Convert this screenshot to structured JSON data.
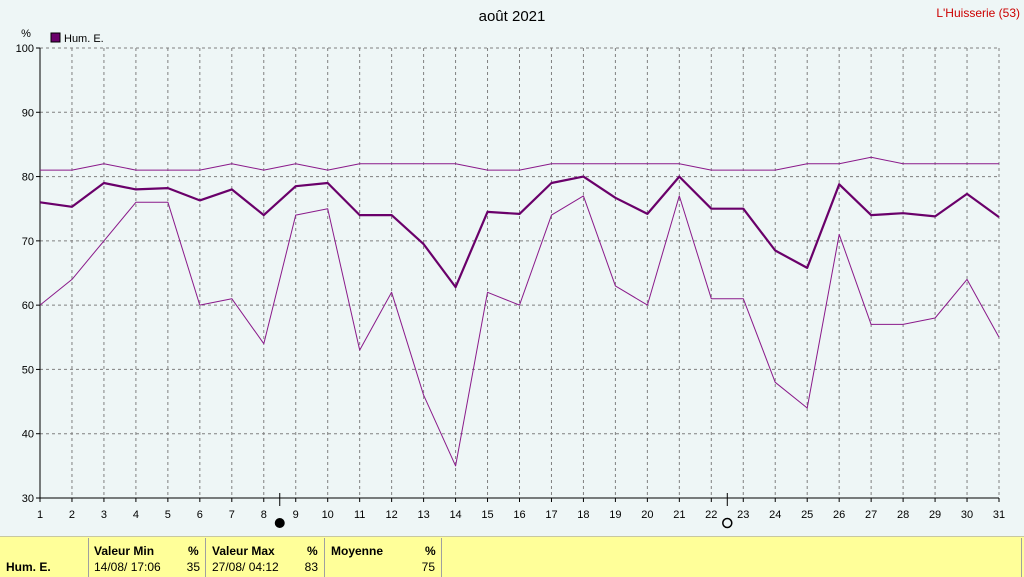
{
  "title": "août 2021",
  "station": "L'Huisserie (53)",
  "legend": {
    "label": "Hum. E."
  },
  "colors": {
    "series": "#6a006a",
    "minmax": "#8a1a8a",
    "grid": "#808080",
    "stats_bg": "#ffff99"
  },
  "markers": {
    "new_moon_day": 9,
    "full_moon_day": 23
  },
  "chart_data": {
    "type": "line",
    "ylabel": "%",
    "ylim": [
      30,
      100
    ],
    "yticks": [
      30,
      40,
      50,
      60,
      70,
      80,
      90,
      100
    ],
    "x": [
      1,
      2,
      3,
      4,
      5,
      6,
      7,
      8,
      9,
      10,
      11,
      12,
      13,
      14,
      15,
      16,
      17,
      18,
      19,
      20,
      21,
      22,
      23,
      24,
      25,
      26,
      27,
      28,
      29,
      30,
      31
    ],
    "grid": true,
    "legend_position": "top-left",
    "series": [
      {
        "name": "Hum. E.",
        "role": "mean",
        "values": [
          76,
          75.3,
          79,
          78,
          78.2,
          76.3,
          78,
          74,
          78.5,
          79,
          74,
          74,
          69.5,
          62.8,
          74.5,
          74.2,
          79,
          80,
          76.7,
          74.2,
          80,
          75,
          75,
          68.5,
          65.8,
          78.8,
          74,
          74.3,
          73.8,
          77.3,
          73.7
        ]
      },
      {
        "role": "max",
        "values": [
          81,
          81,
          82,
          81,
          81,
          81,
          82,
          81,
          82,
          81,
          82,
          82,
          82,
          82,
          81,
          81,
          82,
          82,
          82,
          82,
          82,
          81,
          81,
          81,
          82,
          82,
          83,
          82,
          82,
          82,
          82
        ]
      },
      {
        "role": "min",
        "values": [
          60,
          64,
          70,
          76,
          76,
          60,
          61,
          54,
          74,
          75,
          53,
          62,
          46,
          35,
          62,
          60,
          74,
          77,
          63,
          60,
          77,
          61,
          61,
          48,
          44,
          71,
          57,
          57,
          58,
          64,
          55
        ]
      }
    ]
  },
  "stats": {
    "row_label": "Hum. E.",
    "min": {
      "header": "Valeur Min",
      "unit": "%",
      "when": "14/08/  17:06",
      "value": "35"
    },
    "max": {
      "header": "Valeur Max",
      "unit": "%",
      "when": "27/08/  04:12",
      "value": "83"
    },
    "avg": {
      "header": "Moyenne",
      "unit": "%",
      "value": "75"
    }
  }
}
